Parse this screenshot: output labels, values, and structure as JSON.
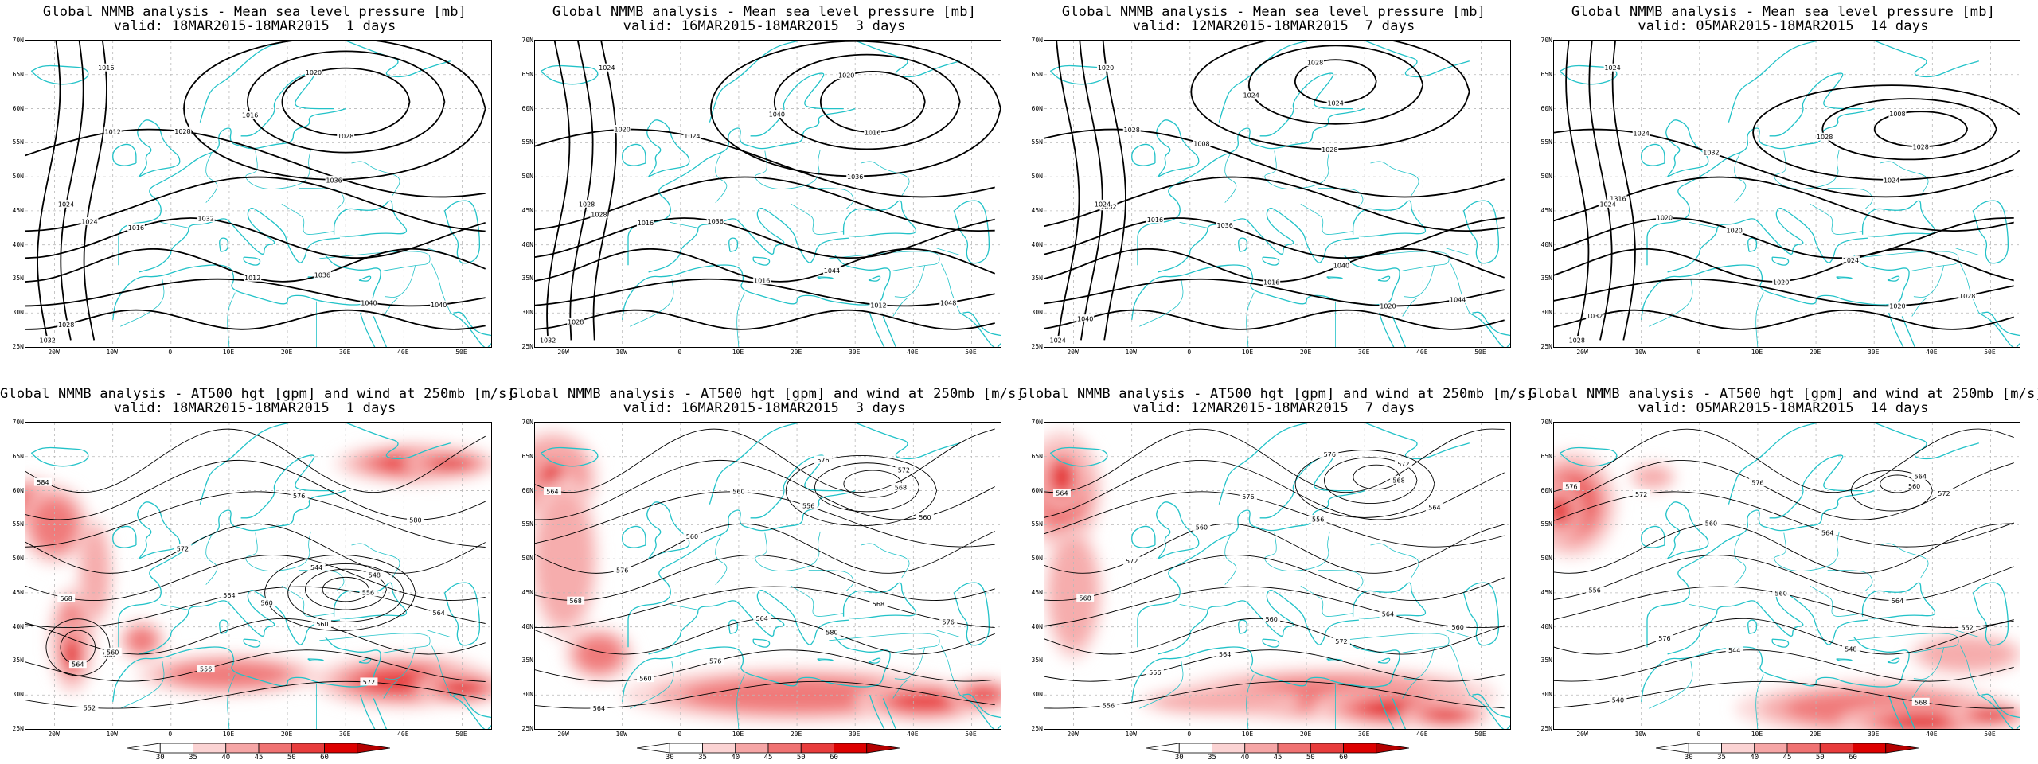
{
  "colors": {
    "coast": "#22c2c8",
    "contour": "#000000",
    "grid": "#b8b8b8",
    "wind": [
      "#ffffff",
      "#fbd3d3",
      "#f6a6a6",
      "#f07272",
      "#e83c3c",
      "#dd0000"
    ]
  },
  "lat_labels": [
    "70N",
    "65N",
    "60N",
    "55N",
    "50N",
    "45N",
    "40N",
    "35N",
    "30N",
    "25N"
  ],
  "lon_labels": [
    "20W",
    "10W",
    "0",
    "10E",
    "20E",
    "30E",
    "40E",
    "50E"
  ],
  "colorbar": {
    "ticks": [
      "30",
      "35",
      "40",
      "45",
      "50",
      "60"
    ]
  },
  "panels": [
    {
      "row": 0,
      "col": 0,
      "type": "mslp",
      "title": "Global NMMB analysis - Mean sea level pressure [mb]",
      "valid": "valid: 18MAR2015-18MAR2015  1 days",
      "labels": [
        "1024",
        "1032",
        "1036",
        "1040",
        "1028",
        "1028",
        "1020",
        "1016",
        "1036",
        "1032",
        "1024",
        "1016",
        "1020",
        "1016",
        "1012",
        "1040",
        "1016",
        "1012",
        "1028"
      ]
    },
    {
      "row": 0,
      "col": 1,
      "type": "mslp",
      "title": "Global NMMB analysis - Mean sea level pressure [mb]",
      "valid": "valid: 16MAR2015-18MAR2015  3 days",
      "labels": [
        "1028",
        "1036",
        "1044",
        "1048",
        "1028",
        "1024",
        "1020",
        "1040",
        "1036",
        "1032",
        "1028",
        "1024",
        "1020",
        "1016",
        "1016",
        "1012",
        "1024",
        "1020",
        "1016"
      ]
    },
    {
      "row": 0,
      "col": 2,
      "type": "mslp",
      "title": "Global NMMB analysis - Mean sea level pressure [mb]",
      "valid": "valid: 12MAR2015-18MAR2015  7 days",
      "labels": [
        "1032",
        "1036",
        "1040",
        "1044",
        "1040",
        "1008",
        "1028",
        "1024",
        "1028",
        "1024",
        "1024",
        "1020",
        "1020",
        "1016",
        "1016",
        "1020",
        "1024",
        "1028",
        "1024"
      ]
    },
    {
      "row": 0,
      "col": 3,
      "type": "mslp",
      "title": "Global NMMB analysis - Mean sea level pressure [mb]",
      "valid": "valid: 05MAR2015-18MAR2015  14 days",
      "labels": [
        "1316",
        "1020",
        "1024",
        "1028",
        "1032",
        "1032",
        "1008",
        "1028",
        "1024",
        "1028",
        "1024",
        "1024",
        "1016",
        "1020",
        "1020",
        "1020",
        "1020",
        "1024",
        "1028"
      ]
    },
    {
      "row": 1,
      "col": 0,
      "type": "z500",
      "title": "Global NMMB analysis - AT500 hgt [gpm] and wind at 250mb [m/s]",
      "valid": "valid: 18MAR2015-18MAR2015  1 days",
      "labels": [
        "552",
        "556",
        "560",
        "564",
        "568",
        "572",
        "576",
        "580",
        "584",
        "556",
        "548",
        "544",
        "560",
        "564",
        "568",
        "572",
        "576",
        "560",
        "564"
      ]
    },
    {
      "row": 1,
      "col": 1,
      "type": "z500",
      "title": "Global NMMB analysis - AT500 hgt [gpm] and wind at 250mb [m/s]",
      "valid": "valid: 16MAR2015-18MAR2015  3 days",
      "labels": [
        "564",
        "576",
        "580",
        "576",
        "568",
        "560",
        "556",
        "560",
        "564",
        "568",
        "572",
        "576",
        "556",
        "560",
        "564",
        "568",
        "572",
        "576",
        "560"
      ]
    },
    {
      "row": 1,
      "col": 2,
      "type": "z500",
      "title": "Global NMMB analysis - AT500 hgt [gpm] and wind at 250mb [m/s]",
      "valid": "valid: 12MAR2015-18MAR2015  7 days",
      "labels": [
        "556",
        "564",
        "572",
        "560",
        "568",
        "560",
        "556",
        "564",
        "564",
        "568",
        "572",
        "576",
        "560",
        "556",
        "560",
        "564",
        "568",
        "572",
        "576"
      ]
    },
    {
      "row": 1,
      "col": 3,
      "type": "z500",
      "title": "Global NMMB analysis - AT500 hgt [gpm] and wind at 250mb [m/s]",
      "valid": "valid: 05MAR2015-18MAR2015  14 days",
      "labels": [
        "540",
        "544",
        "548",
        "552",
        "556",
        "560",
        "564",
        "572",
        "576",
        "560",
        "564",
        "568",
        "572",
        "576",
        "560",
        "564",
        "568",
        "572",
        "576"
      ]
    }
  ]
}
